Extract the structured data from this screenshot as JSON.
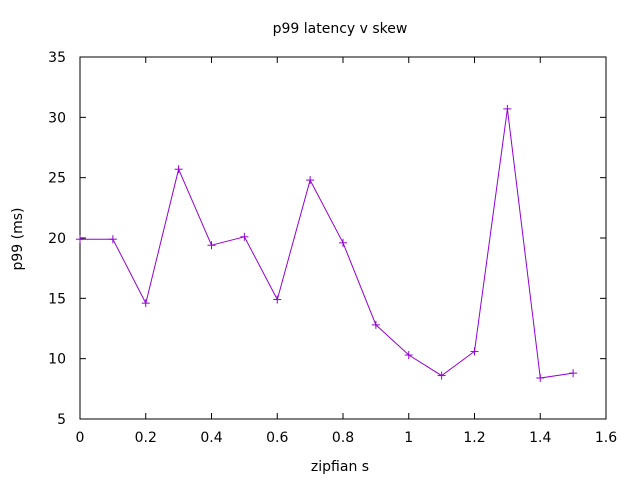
{
  "chart_data": {
    "type": "line",
    "title": "p99 latency v skew",
    "xlabel": "zipfian s",
    "ylabel": "p99 (ms)",
    "xlim": [
      0,
      1.6
    ],
    "ylim": [
      5,
      35
    ],
    "x_ticks": [
      "0",
      "0.2",
      "0.4",
      "0.6",
      "0.8",
      "1",
      "1.2",
      "1.4",
      "1.6"
    ],
    "y_ticks": [
      "5",
      "10",
      "15",
      "20",
      "25",
      "30",
      "35"
    ],
    "grid": false,
    "legend": "none",
    "marker": "plus",
    "series": [
      {
        "color": "#9400d3",
        "x": [
          0,
          0.1,
          0.2,
          0.3,
          0.4,
          0.5,
          0.6,
          0.7,
          0.8,
          0.9,
          1.0,
          1.1,
          1.2,
          1.3,
          1.4,
          1.5
        ],
        "y": [
          19.9,
          19.9,
          14.6,
          25.7,
          19.4,
          20.1,
          14.9,
          24.8,
          19.6,
          12.8,
          10.3,
          8.6,
          10.6,
          30.7,
          8.4,
          8.8
        ]
      }
    ]
  }
}
